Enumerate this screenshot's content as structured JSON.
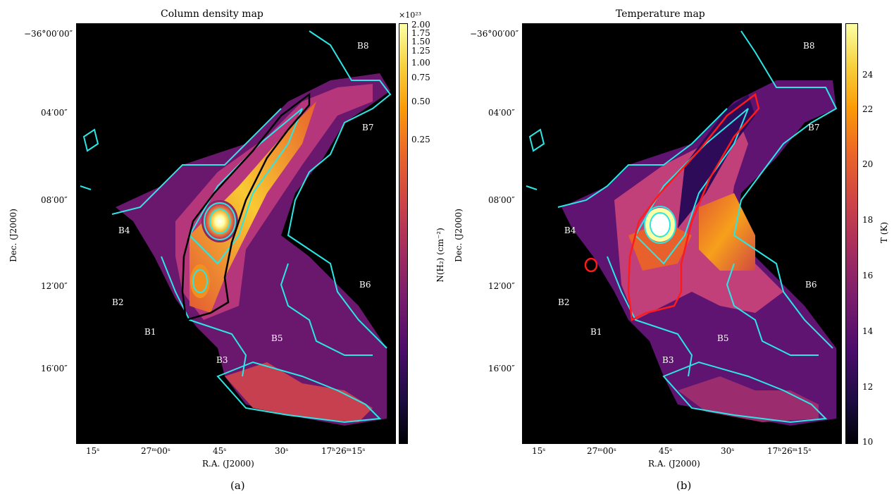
{
  "figure": {
    "panels": [
      {
        "id": "a",
        "title": "Column density map",
        "sublabel": "(a)",
        "xlabel": "R.A. (J2000)",
        "ylabel": "Dec. (J2000)",
        "xticks": [
          "15ˢ",
          "27ᵐ00ˢ",
          "45ˢ",
          "30ˢ",
          "17ʰ26ᵐ15ˢ"
        ],
        "yticks": [
          "−36°00′00″",
          "04′00″",
          "08′00″",
          "12′00″",
          "16′00″"
        ],
        "regions": [
          "B8",
          "B7",
          "B4",
          "B6",
          "B2",
          "B1",
          "B5",
          "B3"
        ],
        "colorbar": {
          "label": "N(H₂) (cm⁻²)",
          "multiplier": "×10²³",
          "ticks": [
            "2.00",
            "1.75",
            "1.50",
            "1.25",
            "1.00",
            "0.75",
            "0.50",
            "0.25"
          ],
          "colormap": "inferno"
        },
        "contour_colors": {
          "cyan": "#2ce6e6",
          "outline": "#000000"
        }
      },
      {
        "id": "b",
        "title": "Temperature map",
        "sublabel": "(b)",
        "xlabel": "R.A. (J2000)",
        "ylabel": "Dec. (J2000)",
        "xticks": [
          "15ˢ",
          "27ᵐ00ˢ",
          "45ˢ",
          "30ˢ",
          "17ʰ26ᵐ15ˢ"
        ],
        "yticks": [
          "−36°00′00″",
          "04′00″",
          "08′00″",
          "12′00″",
          "16′00″"
        ],
        "regions": [
          "B8",
          "B7",
          "B4",
          "B6",
          "B2",
          "B1",
          "B5",
          "B3"
        ],
        "colorbar": {
          "label": "T (K)",
          "ticks": [
            "24",
            "22",
            "20",
            "18",
            "16",
            "14",
            "12",
            "10"
          ],
          "range": [
            10,
            25
          ],
          "colormap": "inferno"
        },
        "contour_colors": {
          "cyan": "#2ce6e6",
          "outline": "#ff1a1a"
        }
      }
    ]
  }
}
